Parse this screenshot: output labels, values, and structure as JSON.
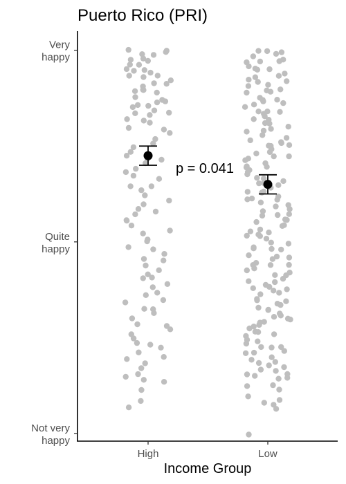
{
  "chart_data": {
    "type": "scatter",
    "title": "Puerto Rico (PRI)",
    "xlabel": "Income Group",
    "ylabel": "",
    "categories": [
      "High",
      "Low"
    ],
    "y_ticks": [
      {
        "value": 1,
        "label": [
          "Not very",
          "happy"
        ]
      },
      {
        "value": 2,
        "label": [
          "Quite",
          "happy"
        ]
      },
      {
        "value": 3,
        "label": [
          "Very",
          "happy"
        ]
      }
    ],
    "ylim": [
      0.96,
      3.1
    ],
    "grid": false,
    "means": [
      {
        "group": "High",
        "mean": 2.45,
        "lower": 2.4,
        "upper": 2.5
      },
      {
        "group": "Low",
        "mean": 2.3,
        "lower": 2.25,
        "upper": 2.35
      }
    ],
    "annotation": "p = 0.041",
    "points": [
      {
        "group": "High",
        "y": [
          3.0,
          3.0,
          2.99,
          2.98,
          2.97,
          2.96,
          2.95,
          2.94,
          2.93,
          2.92,
          2.91,
          2.9,
          2.89,
          2.88,
          2.87,
          2.86,
          2.85,
          2.84,
          2.83,
          2.82,
          2.81,
          2.8,
          2.79,
          2.78,
          2.77,
          2.76,
          2.75,
          2.74,
          2.73,
          2.72,
          2.71,
          2.7,
          2.69,
          2.68,
          2.67,
          2.66,
          2.65,
          2.64,
          2.62,
          2.6,
          2.58,
          2.56,
          2.54,
          2.52,
          2.5,
          2.48,
          2.46,
          2.44,
          2.42,
          2.4,
          2.38,
          2.36,
          2.34,
          2.32,
          2.3,
          2.28,
          2.26,
          2.24,
          2.22,
          2.2,
          2.18,
          2.16,
          2.14,
          2.12,
          2.1,
          2.08,
          2.06,
          2.04,
          2.02,
          2.0,
          1.98,
          1.96,
          1.94,
          1.92,
          1.9,
          1.88,
          1.86,
          1.84,
          1.82,
          1.8,
          1.78,
          1.76,
          1.74,
          1.72,
          1.7,
          1.68,
          1.66,
          1.64,
          1.62,
          1.6,
          1.58,
          1.56,
          1.54,
          1.52,
          1.5,
          1.48,
          1.46,
          1.44,
          1.42,
          1.4,
          1.38,
          1.36,
          1.34,
          1.32,
          1.3,
          1.28,
          1.26,
          1.22,
          1.18,
          1.14
        ]
      },
      {
        "group": "Low",
        "y": [
          3.0,
          2.99,
          2.99,
          2.98,
          2.97,
          2.96,
          2.95,
          2.94,
          2.93,
          2.92,
          2.91,
          2.9,
          2.89,
          2.88,
          2.87,
          2.86,
          2.85,
          2.84,
          2.83,
          2.82,
          2.81,
          2.8,
          2.79,
          2.78,
          2.77,
          2.76,
          2.75,
          2.74,
          2.73,
          2.72,
          2.71,
          2.7,
          2.69,
          2.68,
          2.67,
          2.66,
          2.65,
          2.64,
          2.63,
          2.62,
          2.61,
          2.6,
          2.59,
          2.58,
          2.57,
          2.56,
          2.55,
          2.54,
          2.53,
          2.52,
          2.51,
          2.5,
          2.49,
          2.48,
          2.47,
          2.46,
          2.45,
          2.44,
          2.43,
          2.42,
          2.41,
          2.4,
          2.39,
          2.38,
          2.37,
          2.36,
          2.35,
          2.34,
          2.33,
          2.32,
          2.31,
          2.3,
          2.29,
          2.28,
          2.27,
          2.26,
          2.25,
          2.24,
          2.23,
          2.22,
          2.21,
          2.2,
          2.19,
          2.18,
          2.17,
          2.16,
          2.15,
          2.14,
          2.13,
          2.12,
          2.11,
          2.1,
          2.09,
          2.08,
          2.07,
          2.06,
          2.05,
          2.04,
          2.03,
          2.02,
          2.01,
          2.0,
          1.99,
          1.98,
          1.97,
          1.96,
          1.95,
          1.94,
          1.93,
          1.92,
          1.91,
          1.9,
          1.89,
          1.88,
          1.87,
          1.86,
          1.85,
          1.84,
          1.83,
          1.82,
          1.81,
          1.8,
          1.79,
          1.78,
          1.77,
          1.76,
          1.75,
          1.74,
          1.73,
          1.72,
          1.71,
          1.7,
          1.69,
          1.68,
          1.67,
          1.66,
          1.65,
          1.64,
          1.63,
          1.62,
          1.61,
          1.6,
          1.59,
          1.58,
          1.57,
          1.56,
          1.55,
          1.54,
          1.53,
          1.52,
          1.51,
          1.5,
          1.49,
          1.48,
          1.47,
          1.46,
          1.45,
          1.44,
          1.43,
          1.42,
          1.41,
          1.4,
          1.39,
          1.38,
          1.37,
          1.36,
          1.35,
          1.34,
          1.33,
          1.32,
          1.31,
          1.3,
          1.29,
          1.28,
          1.26,
          1.24,
          1.22,
          1.2,
          1.18,
          1.16,
          1.14,
          1.12,
          1.0
        ]
      }
    ],
    "colors": {
      "points": "#bebebe",
      "means": "#000000"
    }
  }
}
